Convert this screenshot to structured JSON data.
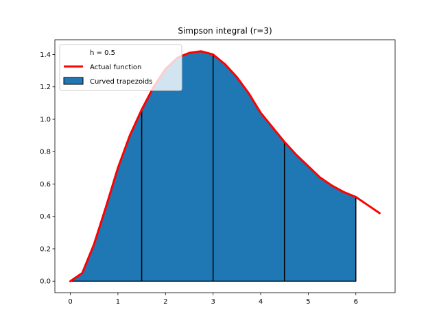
{
  "chart_data": {
    "type": "area",
    "title": "Simpson integral (r=3)",
    "xlabel": "",
    "ylabel": "",
    "xlim": [
      -0.325,
      6.825
    ],
    "ylim": [
      -0.071,
      1.491
    ],
    "xticks": [
      0,
      1,
      2,
      3,
      4,
      5,
      6
    ],
    "xtick_labels": [
      "0",
      "1",
      "2",
      "3",
      "4",
      "5",
      "6"
    ],
    "yticks": [
      0.0,
      0.2,
      0.4,
      0.6,
      0.8,
      1.0,
      1.2,
      1.4
    ],
    "ytick_labels": [
      "0.0",
      "0.2",
      "0.4",
      "0.6",
      "0.8",
      "1.0",
      "1.2",
      "1.4"
    ],
    "grid": false,
    "legend_position": "top-left",
    "legend": [
      {
        "label": "h = 0.5",
        "kind": "blank"
      },
      {
        "label": "Actual function",
        "kind": "line",
        "color": "#ff0000"
      },
      {
        "label": "Curved trapezoids",
        "kind": "patch",
        "color": "#1f77b4"
      }
    ],
    "series": [
      {
        "name": "Actual function",
        "color": "#ff0000",
        "x": [
          0,
          0.25,
          0.5,
          0.75,
          1.0,
          1.25,
          1.5,
          1.75,
          2.0,
          2.25,
          2.5,
          2.75,
          3.0,
          3.25,
          3.5,
          3.75,
          4.0,
          4.25,
          4.5,
          4.75,
          5.0,
          5.25,
          5.5,
          5.75,
          6.0,
          6.25,
          6.5
        ],
        "y": [
          0.0,
          0.05,
          0.23,
          0.46,
          0.7,
          0.9,
          1.06,
          1.2,
          1.31,
          1.38,
          1.41,
          1.42,
          1.4,
          1.34,
          1.26,
          1.16,
          1.04,
          0.95,
          0.86,
          0.78,
          0.71,
          0.64,
          0.59,
          0.55,
          0.52,
          0.47,
          0.42
        ]
      },
      {
        "name": "Curved trapezoids",
        "color": "#1f77b4",
        "x": [
          0,
          0.25,
          0.5,
          0.75,
          1.0,
          1.25,
          1.5,
          1.75,
          2.0,
          2.25,
          2.5,
          2.75,
          3.0,
          3.25,
          3.5,
          3.75,
          4.0,
          4.25,
          4.5,
          4.75,
          5.0,
          5.25,
          5.5,
          5.75,
          6.0
        ],
        "y": [
          0.0,
          0.05,
          0.23,
          0.46,
          0.7,
          0.9,
          1.06,
          1.2,
          1.31,
          1.38,
          1.41,
          1.42,
          1.4,
          1.34,
          1.26,
          1.16,
          1.04,
          0.95,
          0.86,
          0.78,
          0.71,
          0.64,
          0.59,
          0.55,
          0.52
        ],
        "dividers": [
          1.5,
          3.0,
          4.5,
          6.0
        ]
      }
    ]
  }
}
